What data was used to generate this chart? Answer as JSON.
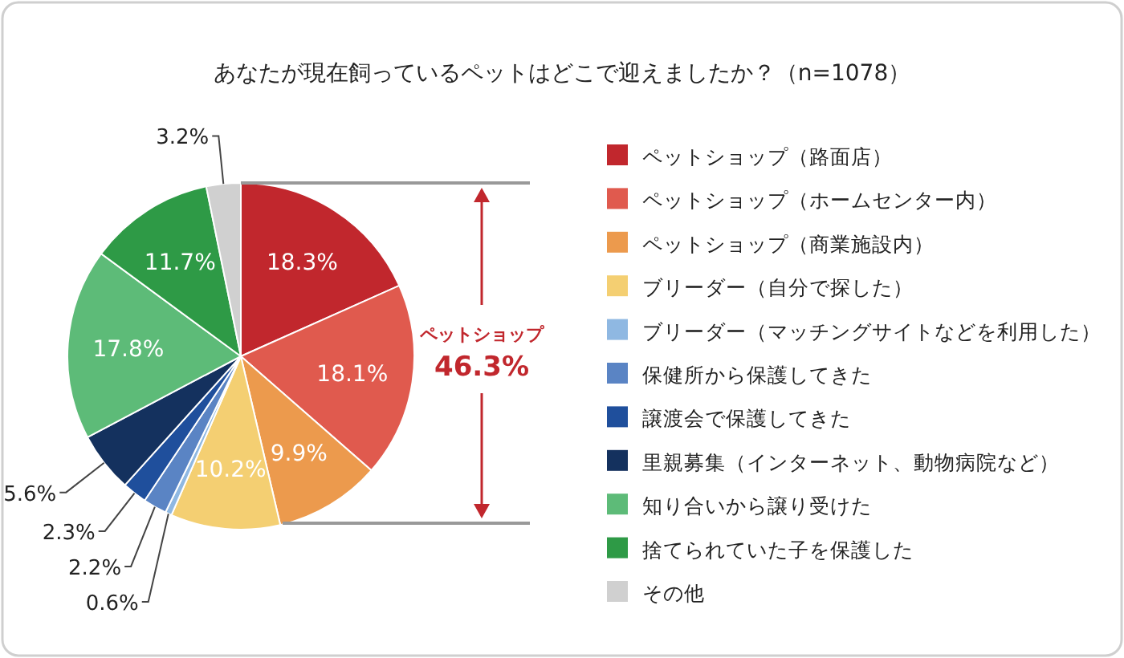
{
  "chart_data": {
    "type": "pie",
    "title": "あなたが現在飼っているペットはどこで迎えましたか？（n=1078）",
    "categories": [
      "ペットショップ（路面店）",
      "ペットショップ（ホームセンター内）",
      "ペットショップ（商業施設内）",
      "ブリーダー（自分で探した）",
      "ブリーダー（マッチングサイトなどを利用した）",
      "保健所から保護してきた",
      "譲渡会で保護してきた",
      "里親募集（インターネット、動物病院など）",
      "知り合いから譲り受けた",
      "捨てられていた子を保護した",
      "その他"
    ],
    "values": [
      18.3,
      18.1,
      9.9,
      10.2,
      0.6,
      2.2,
      2.3,
      5.6,
      17.8,
      11.7,
      3.2
    ],
    "colors": [
      "#c1272d",
      "#e05a4e",
      "#ec9a4d",
      "#f4cf72",
      "#8fb8e2",
      "#5a84c4",
      "#1f4f9c",
      "#14315e",
      "#5dbb78",
      "#2e9a46",
      "#d0d0d0"
    ],
    "value_labels": [
      "18.3%",
      "18.1%",
      "9.9%",
      "10.2%",
      "0.6%",
      "2.2%",
      "2.3%",
      "5.6%",
      "17.8%",
      "11.7%",
      "3.2%"
    ],
    "legend": "right",
    "annotations": [
      "ペットショップ",
      "46.3%"
    ]
  }
}
